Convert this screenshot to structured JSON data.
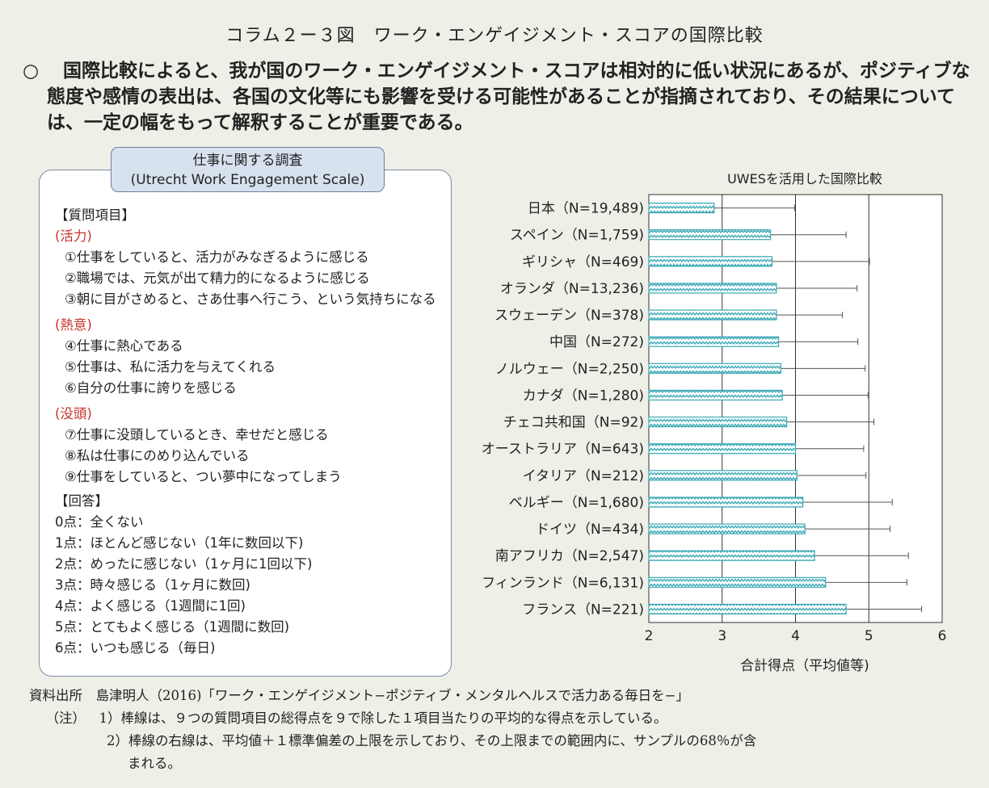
{
  "title": "コラム２ー３図　ワーク・エンゲイジメント・スコアの国際比較",
  "summary": {
    "bullet": "○",
    "text": "国際比較によると、我が国のワーク・エンゲイジメント・スコアは相対的に低い状況にあるが、ポジティブな態度や感情の表出は、各国の文化等にも影響を受ける可能性があることが指摘されており、その結果については、一定の幅をもって解釈することが重要である。"
  },
  "survey": {
    "tab_line1": "仕事に関する調査",
    "tab_line2": "(Utrecht Work Engagement Scale)",
    "questions_header": "【質問項目】",
    "categories": [
      {
        "name": "(活力)",
        "items": [
          "①仕事をしていると、活力がみなぎるように感じる",
          "②職場では、元気が出て精力的になるように感じる",
          "③朝に目がさめると、さあ仕事へ行こう、という気持ちになる"
        ]
      },
      {
        "name": "(熱意)",
        "items": [
          "④仕事に熱心である",
          "⑤仕事は、私に活力を与えてくれる",
          "⑥自分の仕事に誇りを感じる"
        ]
      },
      {
        "name": "(没頭)",
        "items": [
          "⑦仕事に没頭しているとき、幸せだと感じる",
          "⑧私は仕事にのめり込んでいる",
          "⑨仕事をしていると、つい夢中になってしまう"
        ]
      }
    ],
    "answers_header": "【回答】",
    "answers": [
      "0点：全くない",
      "1点：ほとんど感じない（1年に数回以下)",
      "2点：めったに感じない（1ヶ月に1回以下)",
      "3点：時々感じる（1ヶ月に数回)",
      "4点：よく感じる（1週間に1回)",
      "5点：とてもよく感じる（1週間に数回)",
      "6点：いつも感じる（毎日)"
    ]
  },
  "chart_data": {
    "type": "bar",
    "orientation": "horizontal",
    "title": "UWESを活用した国際比較",
    "xlabel": "合計得点（平均値等)",
    "xlim": [
      2,
      6
    ],
    "xticks": [
      2,
      3,
      4,
      5,
      6
    ],
    "grid": "vertical lines at 3, 4, 5",
    "categories": [
      "日本（N=19,489)",
      "スペイン（N=1,759)",
      "ギリシャ（N=469)",
      "オランダ（N=13,236)",
      "スウェーデン（N=378)",
      "中国（N=272)",
      "ノルウェー（N=2,250)",
      "カナダ（N=1,280)",
      "チェコ共和国（N=92)",
      "オーストラリア（N=643)",
      "イタリア（N=212)",
      "ベルギー（N=1,680)",
      "ドイツ（N=434)",
      "南アフリカ（N=2,547)",
      "フィンランド（N=6,131)",
      "フランス（N=221)"
    ],
    "values": [
      2.89,
      3.66,
      3.68,
      3.74,
      3.74,
      3.77,
      3.8,
      3.82,
      3.88,
      4.0,
      4.02,
      4.1,
      4.13,
      4.26,
      4.41,
      4.69
    ],
    "upper_limit": [
      3.99,
      4.69,
      5.01,
      4.84,
      4.64,
      4.85,
      4.95,
      4.99,
      5.07,
      4.93,
      4.96,
      5.32,
      5.29,
      5.54,
      5.52,
      5.72
    ],
    "bar_color": "#3aa8b5",
    "bar_pattern": "zigzag"
  },
  "source": {
    "line1_label": "資料出所",
    "line1_text": "島津明人（2016)「ワーク・エンゲイジメント−ポジティブ・メンタルヘルスで活力ある毎日を−」",
    "note_label": "（注）",
    "note1": "1）棒線は、９つの質問項目の総得点を９で除した１項目当たりの平均的な得点を示している。",
    "note2a": "2）棒線の右線は、平均値＋１標準偏差の上限を示しており、その上限までの範囲内に、サンプルの68％が含",
    "note2b": "まれる。"
  }
}
